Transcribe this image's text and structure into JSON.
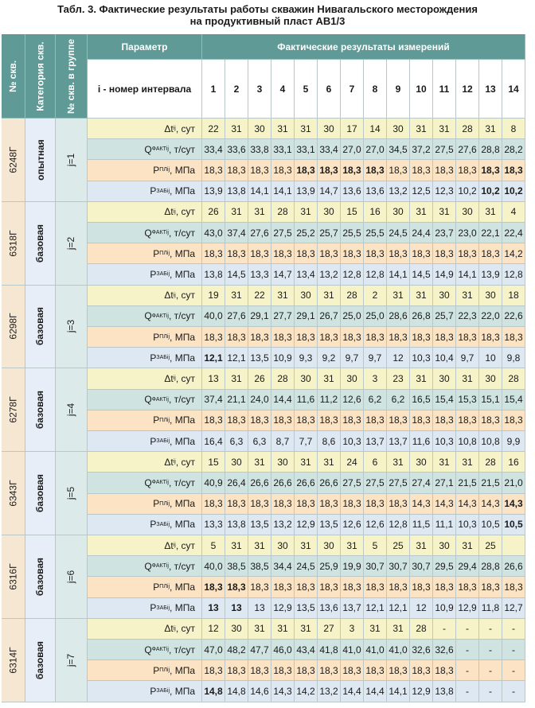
{
  "title": {
    "line1": "Табл. 3. Фактические результаты работы скважин Нивагальского месторождения",
    "line2": "на продуктивный пласт АВ1/3"
  },
  "header": {
    "well_no": "№ скв.",
    "category": "Категория скв.",
    "group_no": "№ скв. в группе",
    "parameter": "Параметр",
    "results": "Фактические результаты измерений",
    "interval_label": "i - номер интервала",
    "intervals": [
      "1",
      "2",
      "3",
      "4",
      "5",
      "6",
      "7",
      "8",
      "9",
      "10",
      "11",
      "12",
      "13",
      "14"
    ]
  },
  "param_labels": [
    {
      "main": "Δt",
      "sup": "",
      "sub": "ij",
      "unit": ", сут"
    },
    {
      "main": "Q",
      "sup": "ФАКТ",
      "sub": "ij",
      "unit": ", т/сут"
    },
    {
      "main": "P",
      "sup": "ПЛ",
      "sub": "ij",
      "unit": ", МПа"
    },
    {
      "main": "P",
      "sup": "ЗАБ",
      "sub": "ij",
      "unit": ", МПа"
    }
  ],
  "colors": {
    "header_teal": "#5f9a97",
    "row_dt": "#f7f3c9",
    "row_q": "#cfe3e1",
    "row_ppl": "#fbe3c4",
    "row_pzab": "#dde8f2",
    "well_name_bg": "#f5e7d2",
    "category_bg": "#e7eef7"
  },
  "wells": [
    {
      "name": "6248Г",
      "category": "опытная",
      "group": "j=1",
      "rows": [
        [
          "22",
          "31",
          "30",
          "31",
          "31",
          "30",
          "17",
          "14",
          "30",
          "31",
          "31",
          "28",
          "31",
          "8"
        ],
        [
          "33,4",
          "33,6",
          "33,8",
          "33,1",
          "33,1",
          "33,4",
          "27,0",
          "27,0",
          "34,5",
          "37,2",
          "27,5",
          "27,6",
          "28,8",
          "28,2"
        ],
        [
          "18,3",
          "18,3",
          "18,3",
          "18,3",
          "*18,3",
          "*18,3",
          "*18,3",
          "*18,3",
          "18,3",
          "18,3",
          "18,3",
          "18,3",
          "*18,3",
          "*18,3"
        ],
        [
          "13,9",
          "13,8",
          "14,1",
          "14,1",
          "13,9",
          "14,7",
          "13,6",
          "13,6",
          "13,2",
          "12,5",
          "12,3",
          "10,2",
          "*10,2",
          "*10,2"
        ]
      ]
    },
    {
      "name": "6318Г",
      "category": "базовая",
      "group": "j=2",
      "rows": [
        [
          "26",
          "31",
          "31",
          "28",
          "31",
          "30",
          "15",
          "16",
          "30",
          "31",
          "31",
          "30",
          "31",
          "4"
        ],
        [
          "43,0",
          "37,4",
          "27,6",
          "27,5",
          "25,2",
          "25,7",
          "25,5",
          "25,5",
          "24,5",
          "24,4",
          "23,7",
          "23,0",
          "22,1",
          "22,4"
        ],
        [
          "18,3",
          "18,3",
          "18,3",
          "18,3",
          "18,3",
          "18,3",
          "18,3",
          "18,3",
          "18,3",
          "18,3",
          "18,3",
          "18,3",
          "18,3",
          "14,2"
        ],
        [
          "13,8",
          "14,5",
          "13,3",
          "14,7",
          "13,4",
          "13,2",
          "12,8",
          "12,8",
          "14,1",
          "14,5",
          "14,9",
          "14,1",
          "13,9",
          "12,8"
        ]
      ]
    },
    {
      "name": "6298Г",
      "category": "базовая",
      "group": "j=3",
      "rows": [
        [
          "19",
          "31",
          "22",
          "31",
          "30",
          "31",
          "28",
          "2",
          "31",
          "31",
          "30",
          "31",
          "30",
          "18"
        ],
        [
          "40,0",
          "27,6",
          "29,1",
          "27,7",
          "29,1",
          "26,7",
          "25,0",
          "25,0",
          "28,6",
          "26,8",
          "25,7",
          "22,3",
          "22,0",
          "22,6"
        ],
        [
          "18,3",
          "18,3",
          "18,3",
          "18,3",
          "18,3",
          "18,3",
          "18,3",
          "18,3",
          "18,3",
          "18,3",
          "18,3",
          "18,3",
          "18,3",
          "18,3"
        ],
        [
          "*12,1",
          "12,1",
          "13,5",
          "10,9",
          "9,3",
          "9,2",
          "9,7",
          "9,7",
          "12",
          "10,3",
          "10,4",
          "9,7",
          "10",
          "9,8"
        ]
      ]
    },
    {
      "name": "6278Г",
      "category": "базовая",
      "group": "j=4",
      "rows": [
        [
          "13",
          "31",
          "26",
          "28",
          "30",
          "31",
          "30",
          "3",
          "23",
          "31",
          "30",
          "31",
          "30",
          "28"
        ],
        [
          "37,4",
          "21,1",
          "24,0",
          "14,4",
          "11,6",
          "11,2",
          "12,6",
          "6,2",
          "6,2",
          "16,5",
          "15,4",
          "15,3",
          "15,1",
          "15,4"
        ],
        [
          "18,3",
          "18,3",
          "18,3",
          "18,3",
          "18,3",
          "18,3",
          "18,3",
          "18,3",
          "18,3",
          "18,3",
          "18,3",
          "18,3",
          "18,3",
          "18,3"
        ],
        [
          "16,4",
          "6,3",
          "6,3",
          "8,7",
          "7,7",
          "8,6",
          "10,3",
          "13,7",
          "13,7",
          "11,6",
          "10,3",
          "10,8",
          "10,8",
          "9,9"
        ]
      ]
    },
    {
      "name": "6343Г",
      "category": "базовая",
      "group": "j=5",
      "rows": [
        [
          "15",
          "30",
          "31",
          "30",
          "31",
          "31",
          "24",
          "6",
          "31",
          "30",
          "31",
          "31",
          "28",
          "16"
        ],
        [
          "40,9",
          "26,4",
          "26,6",
          "26,6",
          "26,6",
          "26,6",
          "27,5",
          "27,5",
          "27,5",
          "27,4",
          "27,1",
          "21,5",
          "21,5",
          "21,0"
        ],
        [
          "18,3",
          "18,3",
          "18,3",
          "18,3",
          "18,3",
          "18,3",
          "18,3",
          "18,3",
          "18,3",
          "14,3",
          "14,3",
          "14,3",
          "14,3",
          "*14,3"
        ],
        [
          "13,3",
          "13,8",
          "13,5",
          "13,2",
          "12,9",
          "13,5",
          "12,6",
          "12,6",
          "12,8",
          "11,5",
          "11,1",
          "10,3",
          "10,5",
          "*10,5"
        ]
      ]
    },
    {
      "name": "6316Г",
      "category": "базовая",
      "group": "j=6",
      "rows": [
        [
          "5",
          "31",
          "31",
          "30",
          "31",
          "30",
          "31",
          "5",
          "25",
          "31",
          "30",
          "31",
          "25",
          ""
        ],
        [
          "40,0",
          "38,5",
          "38,5",
          "34,4",
          "24,5",
          "25,9",
          "19,9",
          "30,7",
          "30,7",
          "30,7",
          "29,5",
          "29,4",
          "28,8",
          "26,6"
        ],
        [
          "*18,3",
          "*18,3",
          "18,3",
          "18,3",
          "18,3",
          "18,3",
          "18,3",
          "18,3",
          "18,3",
          "18,3",
          "18,3",
          "18,3",
          "18,3",
          "18,3"
        ],
        [
          "*13",
          "*13",
          "13",
          "12,9",
          "13,5",
          "13,6",
          "13,7",
          "12,1",
          "12,1",
          "12",
          "10,9",
          "12,9",
          "11,8",
          "12,7"
        ]
      ]
    },
    {
      "name": "6314Г",
      "category": "базовая",
      "group": "j=7",
      "rows": [
        [
          "12",
          "30",
          "31",
          "31",
          "31",
          "27",
          "3",
          "31",
          "31",
          "28",
          "-",
          "-",
          "-",
          "-"
        ],
        [
          "47,0",
          "48,2",
          "47,7",
          "46,0",
          "43,4",
          "41,8",
          "41,0",
          "41,0",
          "41,0",
          "32,6",
          "32,6",
          "-",
          "-",
          "-"
        ],
        [
          "18,3",
          "18,3",
          "18,3",
          "18,3",
          "18,3",
          "18,3",
          "18,3",
          "18,3",
          "18,3",
          "18,3",
          "18,3",
          "-",
          "-",
          "-"
        ],
        [
          "*14,8",
          "14,8",
          "14,6",
          "14,3",
          "14,2",
          "13,2",
          "14,4",
          "14,4",
          "14,1",
          "12,9",
          "13,8",
          "-",
          "-",
          "-"
        ]
      ]
    }
  ]
}
